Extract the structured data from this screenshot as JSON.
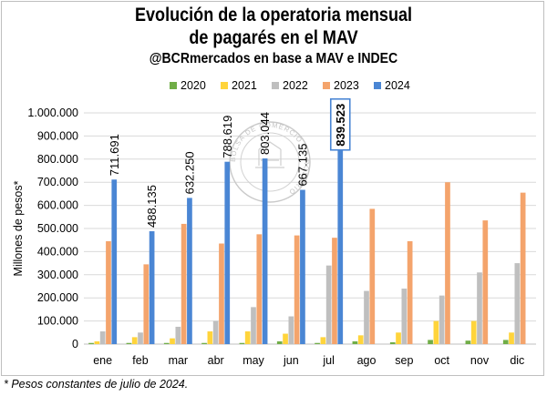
{
  "title": "Evolución de la operatoria mensual",
  "title_line2": "de pagarés en el MAV",
  "subtitle": "@BCRmercados en base a MAV e INDEC",
  "footnote": "* Pesos constantes de julio de 2024.",
  "watermark": "BOLSA DE COMERCIO DE ROSARIO",
  "colors": {
    "2020": "#70ad47",
    "2021": "#ffd43b",
    "2022": "#bfbfbf",
    "2023": "#f4a46c",
    "2024": "#4a86d4"
  },
  "chart_data": {
    "type": "bar",
    "ylabel": "Millones de pesos*",
    "ylim": [
      0,
      1000000
    ],
    "yticks": [
      0,
      100000,
      200000,
      300000,
      400000,
      500000,
      600000,
      700000,
      800000,
      900000,
      1000000
    ],
    "ytick_labels": [
      "0",
      "100.000",
      "200.000",
      "300.000",
      "400.000",
      "500.000",
      "600.000",
      "700.000",
      "800.000",
      "900.000",
      "1.000.000"
    ],
    "grid": true,
    "legend": "top",
    "categories": [
      "ene",
      "feb",
      "mar",
      "abr",
      "may",
      "jun",
      "jul",
      "ago",
      "sep",
      "oct",
      "nov",
      "dic"
    ],
    "series": [
      {
        "name": "2020",
        "values": [
          5000,
          5000,
          5000,
          5000,
          5000,
          12000,
          5000,
          12000,
          8000,
          18000,
          15000,
          18000
        ]
      },
      {
        "name": "2021",
        "values": [
          12000,
          30000,
          25000,
          55000,
          55000,
          45000,
          30000,
          38000,
          50000,
          100000,
          100000,
          50000
        ]
      },
      {
        "name": "2022",
        "values": [
          55000,
          50000,
          75000,
          100000,
          160000,
          120000,
          340000,
          230000,
          240000,
          210000,
          310000,
          350000
        ]
      },
      {
        "name": "2023",
        "values": [
          445000,
          345000,
          520000,
          435000,
          475000,
          470000,
          460000,
          585000,
          445000,
          700000,
          535000,
          655000
        ]
      },
      {
        "name": "2024",
        "values": [
          711691,
          488135,
          632250,
          788619,
          803044,
          667135,
          839523,
          null,
          null,
          null,
          null,
          null
        ]
      }
    ],
    "data_labels": {
      "series": "2024",
      "labels": [
        "711.691",
        "488.135",
        "632.250",
        "788.619",
        "803.044",
        "667.135",
        "839.523"
      ],
      "highlighted_index": 6
    }
  }
}
